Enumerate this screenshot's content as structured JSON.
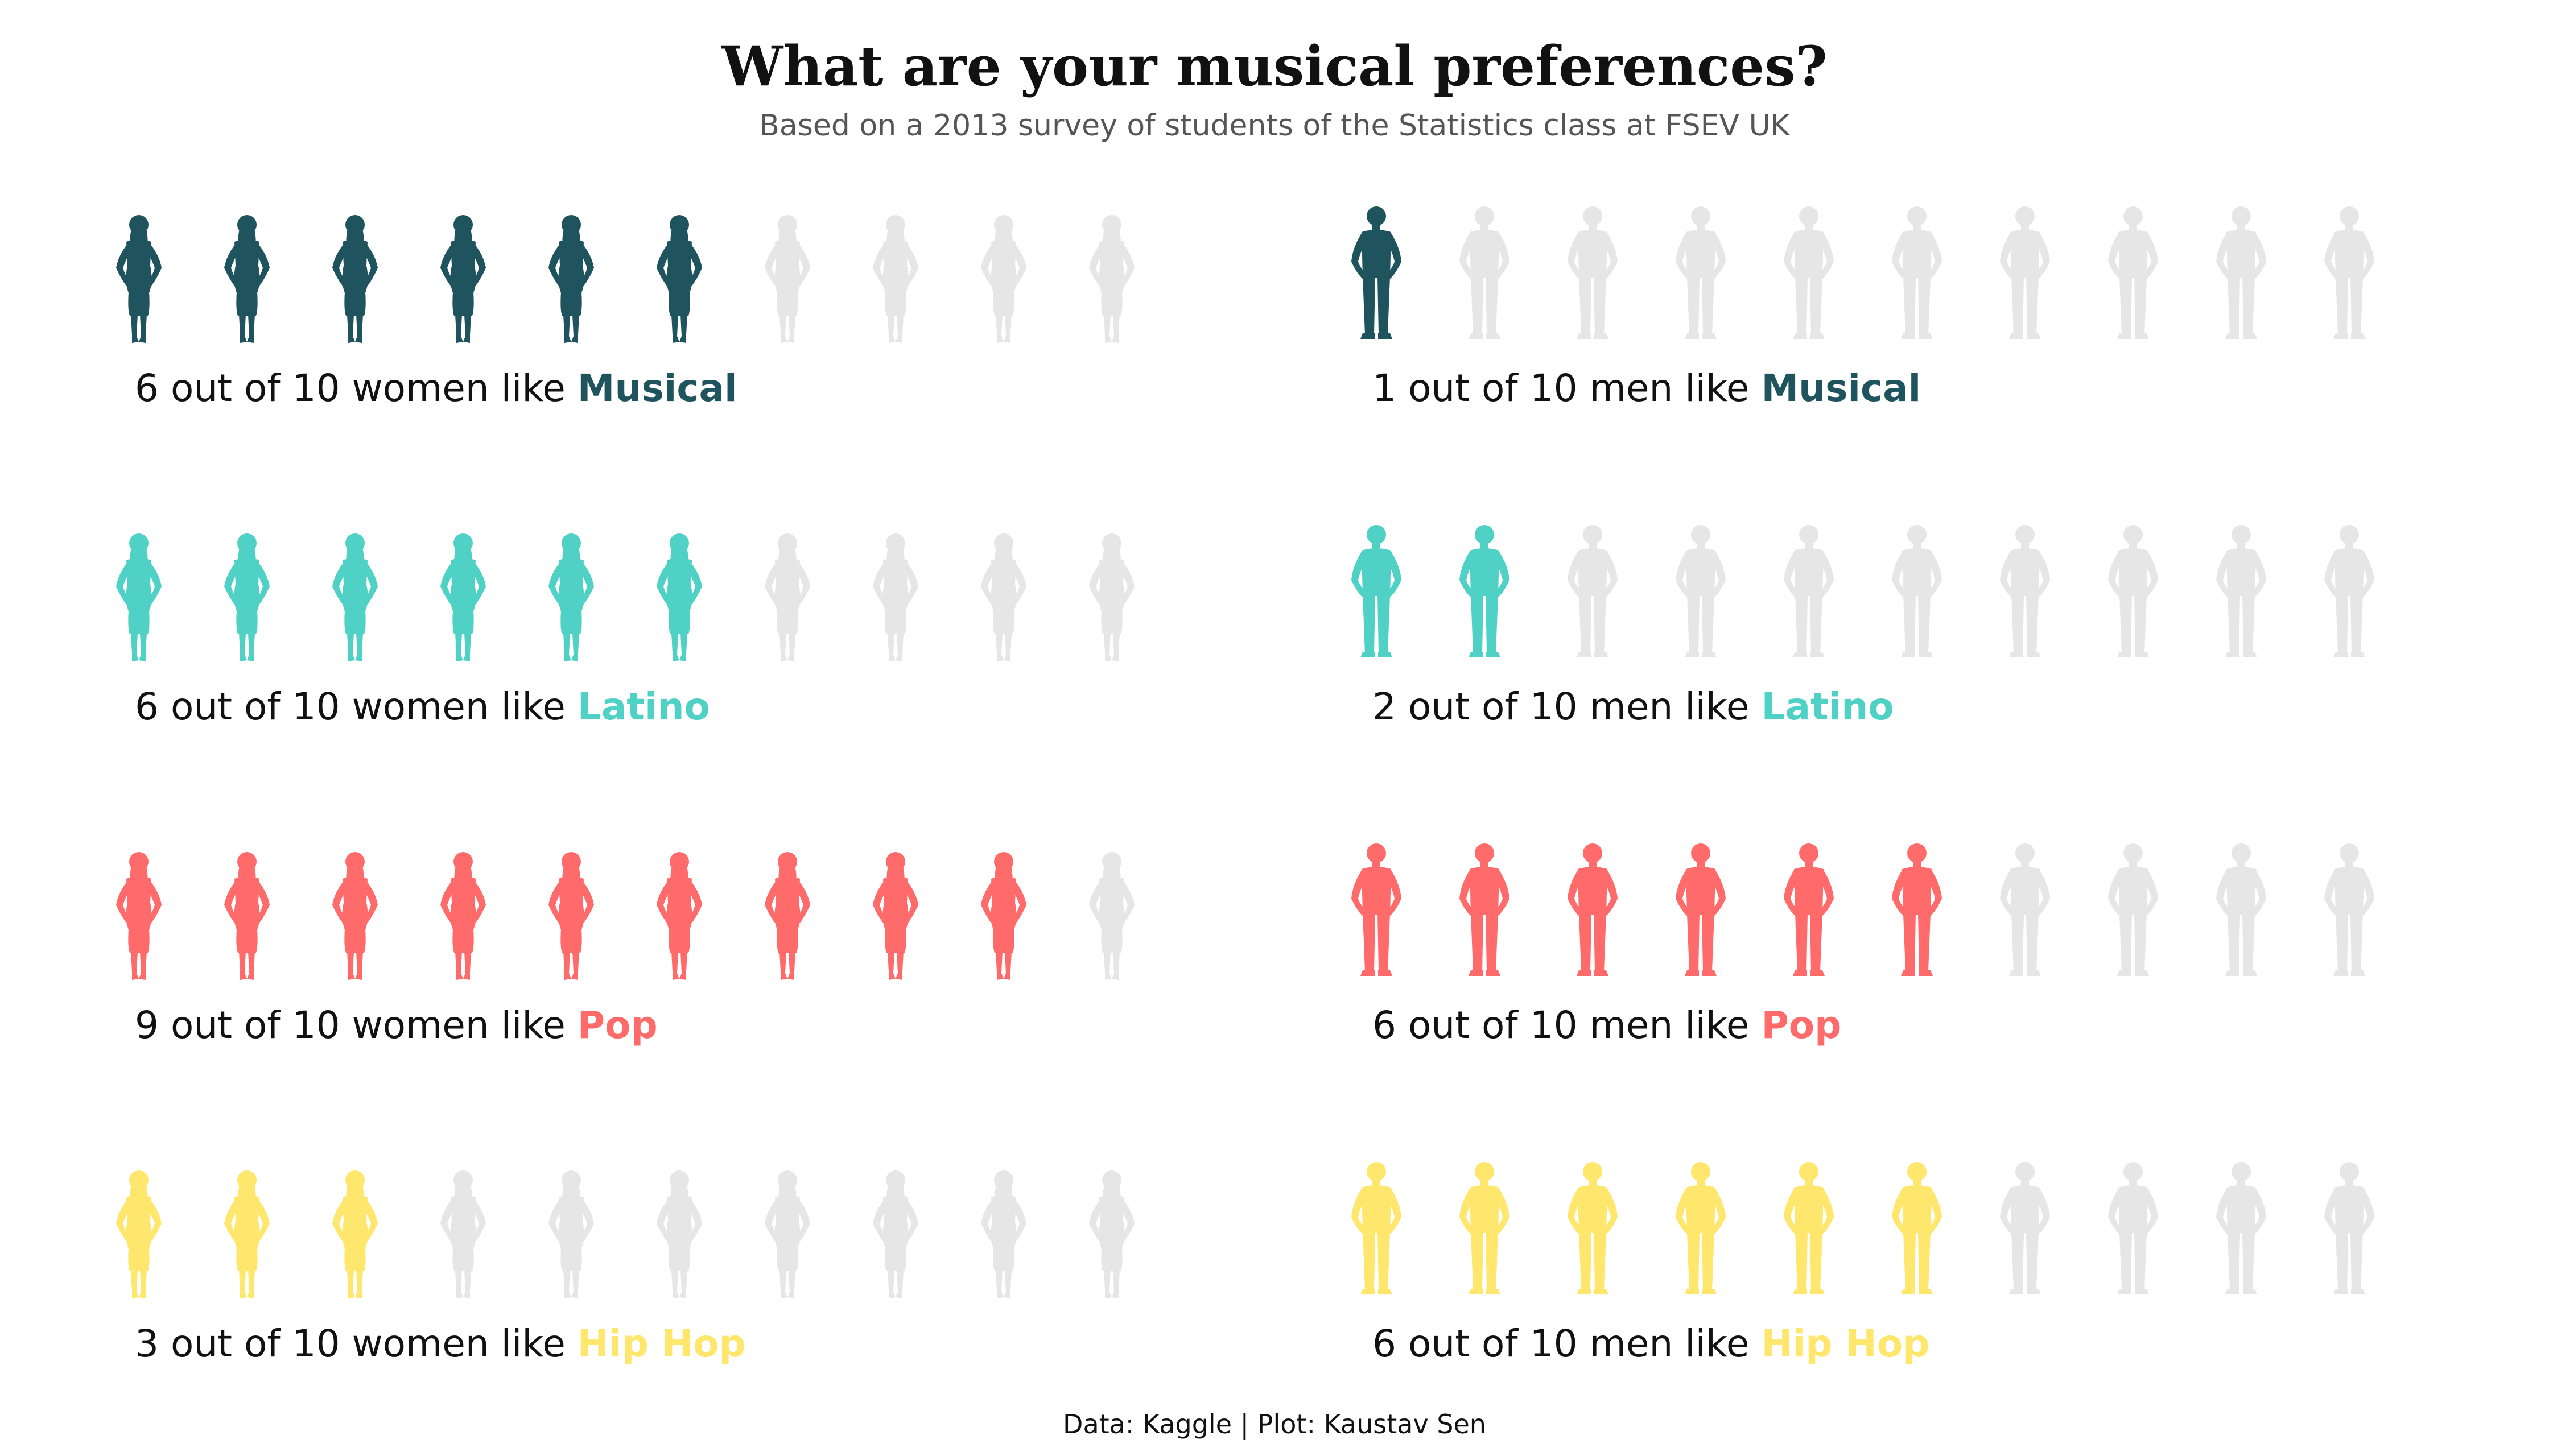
{
  "title": "What are your musical preferences?",
  "subtitle": "Based on a 2013 survey of students of the Statistics class at FSEV UK",
  "credit": "Data: Kaggle | Plot: Kaustav Sen",
  "chart_data": {
    "type": "pictogram",
    "icons_per_row": 10,
    "inactive_color": "#e6e6e6",
    "panels": [
      {
        "group": "women",
        "genre": "Musical",
        "value": 6,
        "total": 10,
        "color": "#1f535e",
        "text_prefix": "6 out of 10 women like ",
        "icon": "woman-silhouette-icon"
      },
      {
        "group": "men",
        "genre": "Musical",
        "value": 1,
        "total": 10,
        "color": "#1f535e",
        "text_prefix": "1 out of 10 men like ",
        "icon": "man-silhouette-icon"
      },
      {
        "group": "women",
        "genre": "Latino",
        "value": 6,
        "total": 10,
        "color": "#4fd1c5",
        "text_prefix": "6 out of 10 women like ",
        "icon": "woman-silhouette-icon"
      },
      {
        "group": "men",
        "genre": "Latino",
        "value": 2,
        "total": 10,
        "color": "#4fd1c5",
        "text_prefix": "2 out of 10 men like ",
        "icon": "man-silhouette-icon"
      },
      {
        "group": "women",
        "genre": "Pop",
        "value": 9,
        "total": 10,
        "color": "#ff6b6b",
        "text_prefix": "9 out of 10 women like ",
        "icon": "woman-silhouette-icon"
      },
      {
        "group": "men",
        "genre": "Pop",
        "value": 6,
        "total": 10,
        "color": "#ff6b6b",
        "text_prefix": "6 out of 10 men like ",
        "icon": "man-silhouette-icon"
      },
      {
        "group": "women",
        "genre": "Hip Hop",
        "value": 3,
        "total": 10,
        "color": "#ffe66d",
        "text_prefix": "3 out of 10 women like ",
        "icon": "woman-silhouette-icon"
      },
      {
        "group": "men",
        "genre": "Hip Hop",
        "value": 6,
        "total": 10,
        "color": "#ffe66d",
        "text_prefix": "6 out of 10 men like ",
        "icon": "man-silhouette-icon"
      }
    ]
  }
}
